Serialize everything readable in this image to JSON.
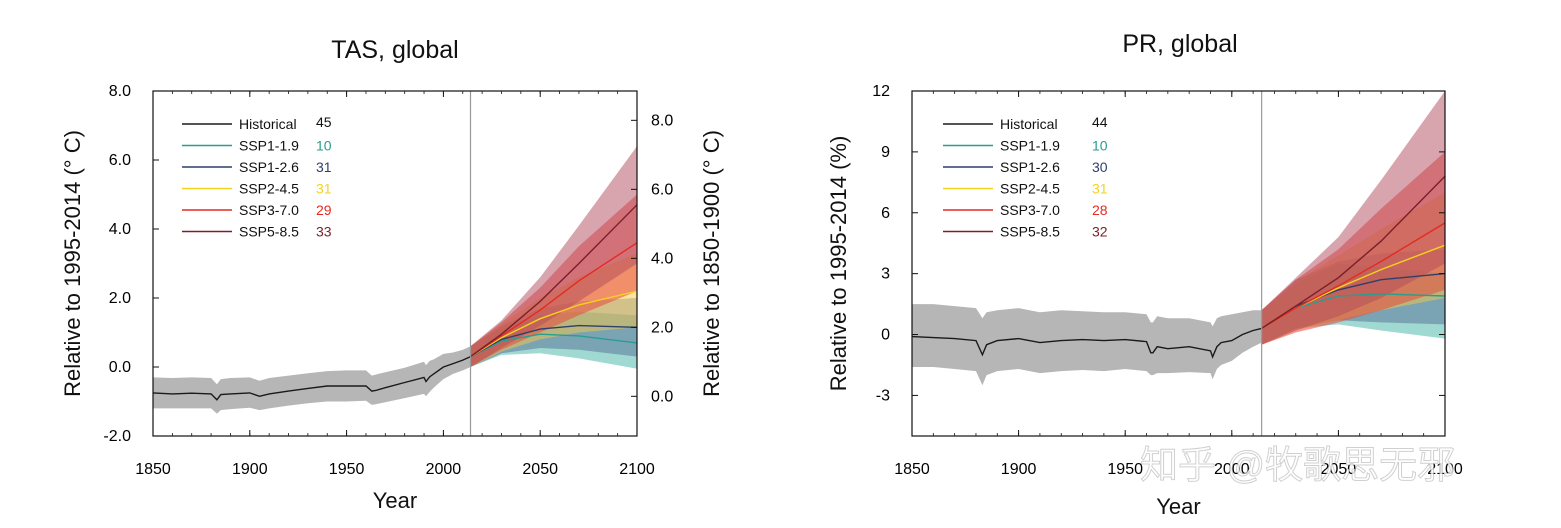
{
  "chart_data": [
    {
      "id": "tas",
      "type": "line",
      "title": "TAS, global",
      "xlabel": "Year",
      "ylabel": "Relative to 1995-2014 (° C)",
      "ylabel_right": "Relative to 1850-1900 (° C)",
      "xlim": [
        1850,
        2100
      ],
      "ylim": [
        -2,
        8
      ],
      "xticks": [
        1850,
        1900,
        1950,
        2000,
        2050,
        2100
      ],
      "xtick_labels": [
        "1850",
        "1900",
        "1950",
        "2000",
        "2050",
        "2100"
      ],
      "yticks": [
        -2,
        0,
        2,
        4,
        6,
        8
      ],
      "ytick_labels": [
        "-2.0",
        "0.0",
        "2.0",
        "4.0",
        "6.0",
        "8.0"
      ],
      "y2_offset": 0.85,
      "y2ticks": [
        0,
        2,
        4,
        6,
        8
      ],
      "y2tick_labels": [
        "0.0",
        "2.0",
        "4.0",
        "6.0",
        "8.0"
      ],
      "divider_year": 2014,
      "series": [
        {
          "name": "Historical",
          "count": "45",
          "color": "#1a1a1a",
          "band_color": "#a9a9a9",
          "band_opacity": 0.85,
          "x": [
            1850,
            1860,
            1870,
            1880,
            1883,
            1885,
            1890,
            1900,
            1905,
            1910,
            1920,
            1930,
            1940,
            1950,
            1960,
            1963,
            1965,
            1970,
            1980,
            1990,
            1991,
            1993,
            1995,
            2000,
            2005,
            2010,
            2014
          ],
          "y": [
            -0.75,
            -0.78,
            -0.76,
            -0.78,
            -0.95,
            -0.8,
            -0.78,
            -0.75,
            -0.85,
            -0.78,
            -0.7,
            -0.62,
            -0.55,
            -0.55,
            -0.55,
            -0.7,
            -0.68,
            -0.6,
            -0.45,
            -0.3,
            -0.42,
            -0.28,
            -0.2,
            0.0,
            0.1,
            0.2,
            0.3
          ],
          "lo": [
            -1.2,
            -1.2,
            -1.2,
            -1.2,
            -1.35,
            -1.25,
            -1.22,
            -1.18,
            -1.25,
            -1.2,
            -1.12,
            -1.05,
            -1.0,
            -1.0,
            -0.98,
            -1.1,
            -1.08,
            -1.02,
            -0.9,
            -0.78,
            -0.85,
            -0.72,
            -0.6,
            -0.35,
            -0.2,
            -0.1,
            0.0
          ],
          "hi": [
            -0.3,
            -0.32,
            -0.3,
            -0.32,
            -0.5,
            -0.35,
            -0.32,
            -0.3,
            -0.4,
            -0.32,
            -0.25,
            -0.18,
            -0.12,
            -0.1,
            -0.1,
            -0.25,
            -0.22,
            -0.15,
            -0.02,
            0.15,
            0.05,
            0.18,
            0.22,
            0.38,
            0.42,
            0.5,
            0.6
          ]
        },
        {
          "name": "SSP1-1.9",
          "count": "10",
          "color": "#2a9d8f",
          "band_color": "#3fb3a3",
          "band_opacity": 0.5,
          "x": [
            2014,
            2030,
            2050,
            2070,
            2100
          ],
          "y": [
            0.3,
            0.75,
            0.95,
            0.9,
            0.7
          ],
          "lo": [
            0.0,
            0.35,
            0.4,
            0.25,
            -0.05
          ],
          "hi": [
            0.6,
            1.15,
            1.5,
            1.6,
            1.5
          ]
        },
        {
          "name": "SSP1-2.6",
          "count": "31",
          "color": "#2f3f6b",
          "band_color": "#4d628f",
          "band_opacity": 0.45,
          "x": [
            2014,
            2030,
            2050,
            2070,
            2100
          ],
          "y": [
            0.3,
            0.8,
            1.1,
            1.2,
            1.15
          ],
          "lo": [
            0.0,
            0.4,
            0.55,
            0.5,
            0.3
          ],
          "hi": [
            0.6,
            1.2,
            1.7,
            1.9,
            2.0
          ]
        },
        {
          "name": "SSP2-4.5",
          "count": "31",
          "color": "#f5d21e",
          "band_color": "#f7c948",
          "band_opacity": 0.5,
          "x": [
            2014,
            2030,
            2050,
            2070,
            2100
          ],
          "y": [
            0.3,
            0.85,
            1.4,
            1.8,
            2.2
          ],
          "lo": [
            0.0,
            0.45,
            0.8,
            1.0,
            1.15
          ],
          "hi": [
            0.6,
            1.25,
            2.0,
            2.6,
            3.3
          ]
        },
        {
          "name": "SSP3-7.0",
          "count": "29",
          "color": "#e32b22",
          "band_color": "#e8493d",
          "band_opacity": 0.55,
          "x": [
            2014,
            2030,
            2050,
            2070,
            2100
          ],
          "y": [
            0.3,
            0.9,
            1.65,
            2.5,
            3.6
          ],
          "lo": [
            0.0,
            0.5,
            1.0,
            1.5,
            2.2
          ],
          "hi": [
            0.6,
            1.3,
            2.3,
            3.5,
            5.0
          ]
        },
        {
          "name": "SSP5-8.5",
          "count": "33",
          "color": "#7a1f2b",
          "band_color": "#b24a5c",
          "band_opacity": 0.5,
          "x": [
            2014,
            2030,
            2050,
            2070,
            2100
          ],
          "y": [
            0.3,
            0.95,
            1.9,
            3.0,
            4.7
          ],
          "lo": [
            0.0,
            0.55,
            1.2,
            1.9,
            3.0
          ],
          "hi": [
            0.6,
            1.35,
            2.6,
            4.1,
            6.4
          ]
        }
      ]
    },
    {
      "id": "pr",
      "type": "line",
      "title": "PR, global",
      "xlabel": "Year",
      "ylabel": "Relative to 1995-2014 (%)",
      "xlim": [
        1850,
        2100
      ],
      "ylim": [
        -5,
        12
      ],
      "xticks": [
        1850,
        1900,
        1950,
        2000,
        2050,
        2100
      ],
      "xtick_labels": [
        "1850",
        "1900",
        "1950",
        "2000",
        "2050",
        "2100"
      ],
      "yticks": [
        -3,
        0,
        3,
        6,
        9,
        12
      ],
      "ytick_labels": [
        "-3",
        "0",
        "3",
        "6",
        "9",
        "12"
      ],
      "divider_year": 2014,
      "series": [
        {
          "name": "Historical",
          "count": "44",
          "color": "#1a1a1a",
          "band_color": "#a9a9a9",
          "band_opacity": 0.85,
          "x": [
            1850,
            1860,
            1870,
            1880,
            1883,
            1885,
            1890,
            1900,
            1910,
            1920,
            1930,
            1940,
            1950,
            1960,
            1962,
            1963,
            1965,
            1970,
            1980,
            1990,
            1991,
            1993,
            1995,
            2000,
            2005,
            2010,
            2014
          ],
          "y": [
            -0.1,
            -0.15,
            -0.2,
            -0.3,
            -1.0,
            -0.5,
            -0.3,
            -0.2,
            -0.4,
            -0.3,
            -0.25,
            -0.3,
            -0.25,
            -0.35,
            -0.9,
            -0.9,
            -0.6,
            -0.7,
            -0.6,
            -0.8,
            -1.1,
            -0.6,
            -0.4,
            -0.3,
            0.0,
            0.2,
            0.3
          ],
          "lo": [
            -1.6,
            -1.6,
            -1.7,
            -1.8,
            -2.5,
            -2.0,
            -1.8,
            -1.7,
            -1.9,
            -1.8,
            -1.75,
            -1.8,
            -1.7,
            -1.8,
            -2.0,
            -2.0,
            -1.9,
            -1.9,
            -1.85,
            -1.9,
            -2.2,
            -1.7,
            -1.5,
            -1.3,
            -0.9,
            -0.6,
            -0.4
          ],
          "hi": [
            1.5,
            1.5,
            1.4,
            1.3,
            0.8,
            1.1,
            1.2,
            1.3,
            1.1,
            1.2,
            1.15,
            1.1,
            1.1,
            1.0,
            0.6,
            0.6,
            0.9,
            0.8,
            0.8,
            0.6,
            0.4,
            0.8,
            0.9,
            1.0,
            1.1,
            1.2,
            1.2
          ]
        },
        {
          "name": "SSP1-1.9",
          "count": "10",
          "color": "#2a9d8f",
          "band_color": "#3fb3a3",
          "band_opacity": 0.5,
          "x": [
            2014,
            2030,
            2050,
            2070,
            2100
          ],
          "y": [
            0.3,
            1.3,
            1.9,
            2.0,
            1.9
          ],
          "lo": [
            -0.5,
            0.3,
            0.5,
            0.2,
            -0.2
          ],
          "hi": [
            1.2,
            2.5,
            3.5,
            3.3,
            3.0
          ]
        },
        {
          "name": "SSP1-2.6",
          "count": "30",
          "color": "#2f3f6b",
          "band_color": "#4d628f",
          "band_opacity": 0.45,
          "x": [
            2014,
            2030,
            2050,
            2070,
            2100
          ],
          "y": [
            0.3,
            1.4,
            2.2,
            2.7,
            3.0
          ],
          "lo": [
            -0.5,
            0.3,
            0.7,
            0.6,
            0.5
          ],
          "hi": [
            1.2,
            2.7,
            3.6,
            4.0,
            4.2
          ]
        },
        {
          "name": "SSP2-4.5",
          "count": "31",
          "color": "#f5d21e",
          "band_color": "#f7c948",
          "band_opacity": 0.5,
          "x": [
            2014,
            2030,
            2050,
            2070,
            2100
          ],
          "y": [
            0.3,
            1.3,
            2.3,
            3.2,
            4.4
          ],
          "lo": [
            -0.5,
            0.2,
            0.7,
            1.2,
            1.8
          ],
          "hi": [
            1.2,
            2.6,
            3.9,
            5.2,
            7.0
          ]
        },
        {
          "name": "SSP3-7.0",
          "count": "28",
          "color": "#e32b22",
          "band_color": "#e8493d",
          "band_opacity": 0.55,
          "x": [
            2014,
            2030,
            2050,
            2070,
            2100
          ],
          "y": [
            0.3,
            1.3,
            2.4,
            3.6,
            5.5
          ],
          "lo": [
            -0.5,
            0.1,
            0.6,
            1.2,
            2.2
          ],
          "hi": [
            1.2,
            2.7,
            4.2,
            6.2,
            9.0
          ]
        },
        {
          "name": "SSP5-8.5",
          "count": "32",
          "color": "#7a1f2b",
          "band_color": "#b24a5c",
          "band_opacity": 0.5,
          "x": [
            2014,
            2030,
            2050,
            2070,
            2100
          ],
          "y": [
            0.3,
            1.4,
            2.8,
            4.6,
            7.8
          ],
          "lo": [
            -0.5,
            0.2,
            0.9,
            1.8,
            3.5
          ],
          "hi": [
            1.2,
            2.8,
            4.8,
            7.6,
            12.0
          ]
        }
      ]
    }
  ],
  "watermark": "知乎 @牧歌思无邪"
}
